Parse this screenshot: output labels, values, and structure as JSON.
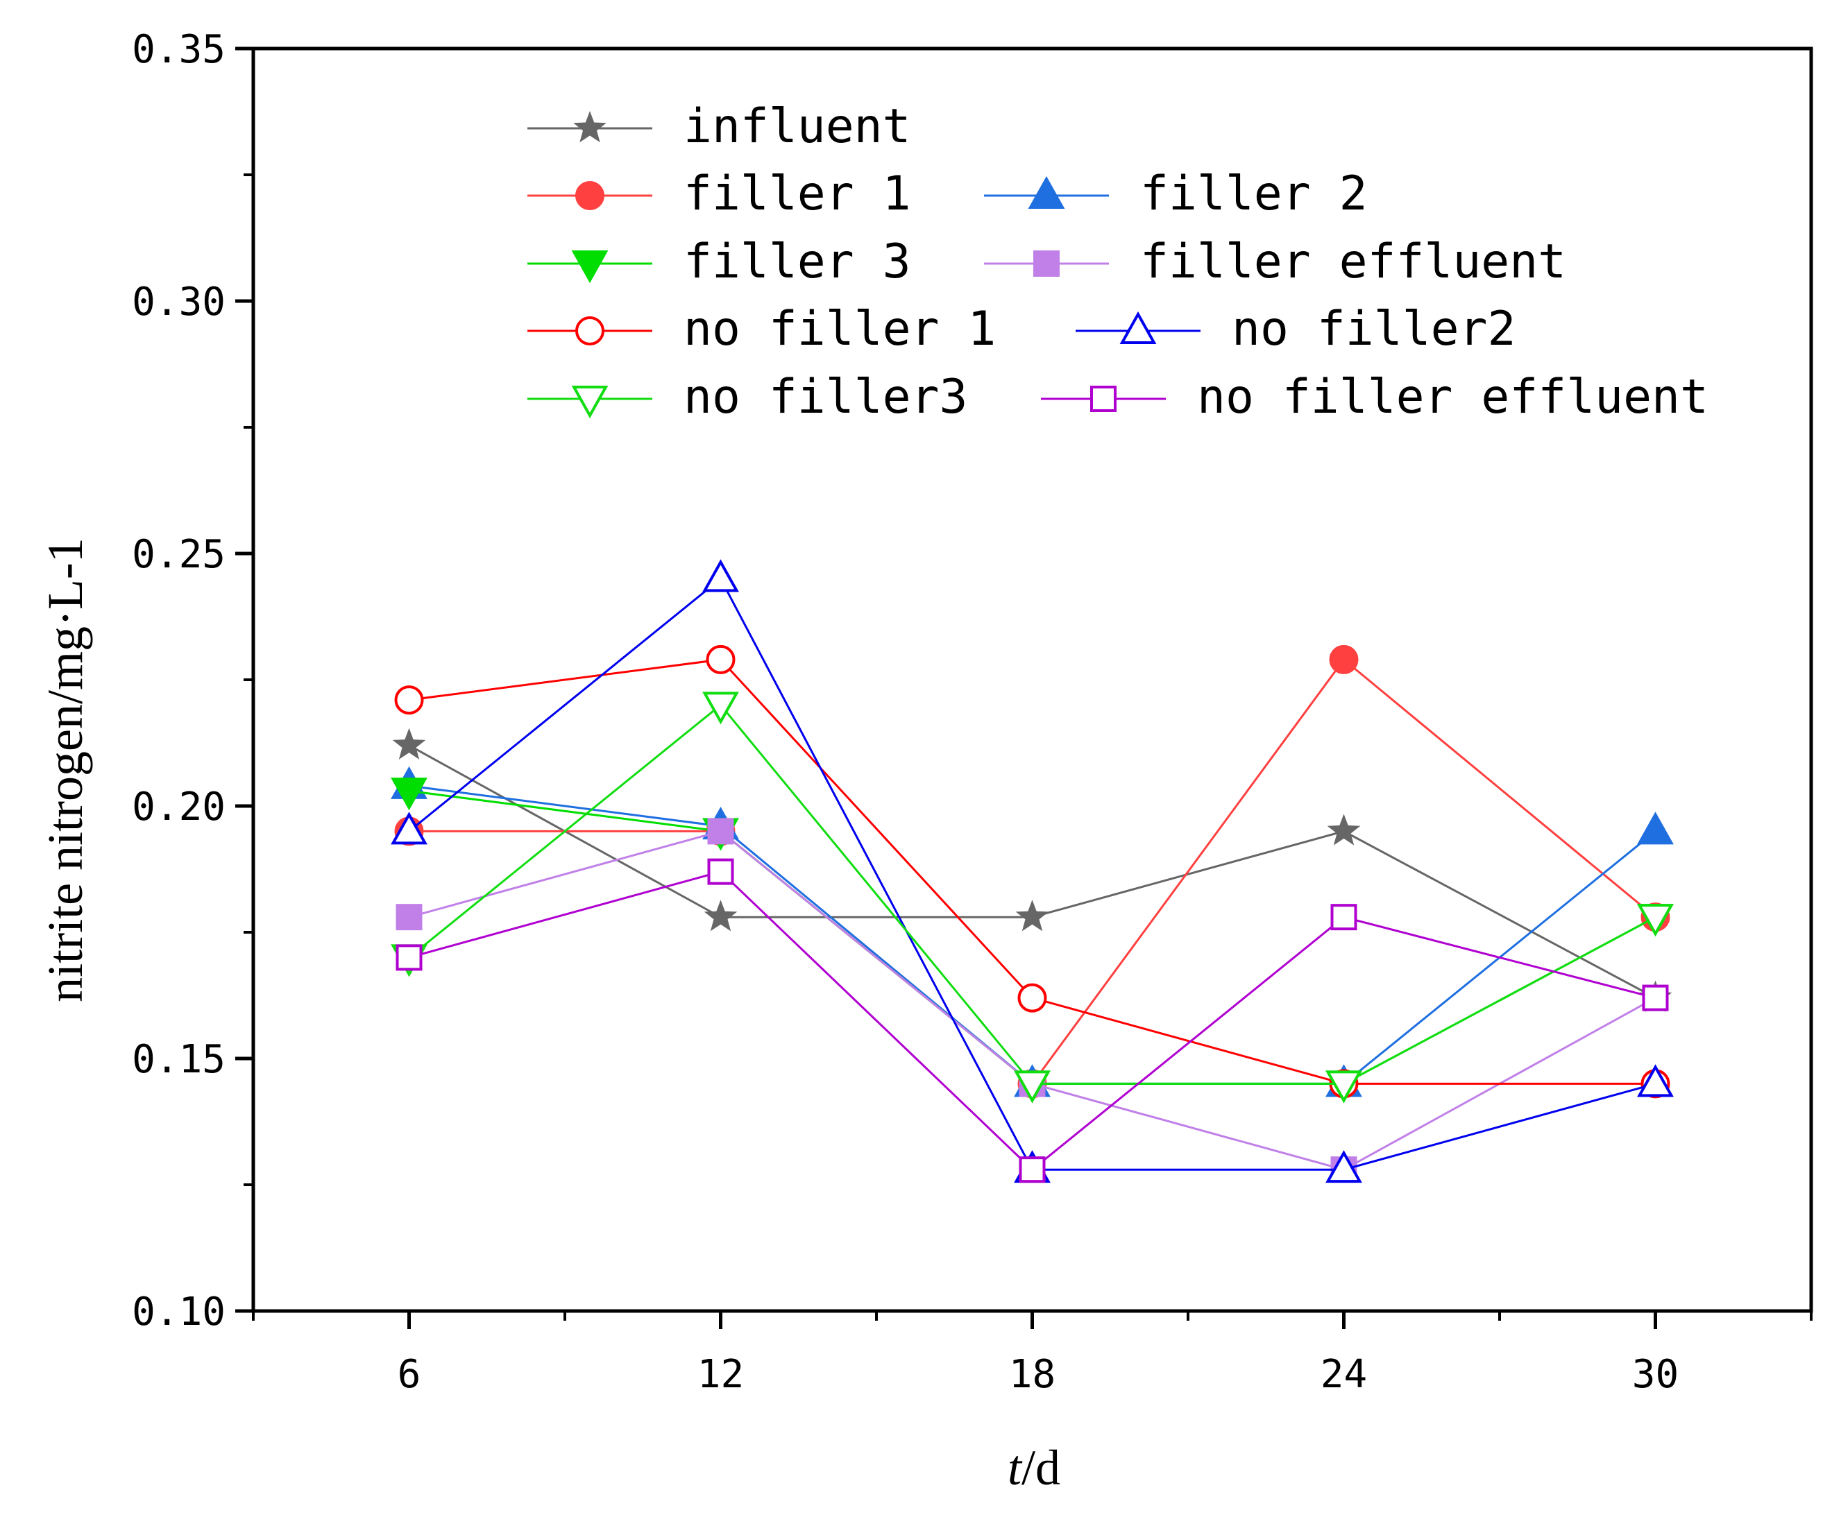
{
  "chart_data": {
    "type": "line",
    "title": "",
    "xlabel_italic": "t",
    "xlabel_rest": "/d",
    "ylabel": "nitrite nitrogen/mg·L-1",
    "x": [
      6,
      12,
      18,
      24,
      30
    ],
    "xlim": [
      3,
      33
    ],
    "ylim": [
      0.1,
      0.35
    ],
    "x_ticks": [
      "6",
      "12",
      "18",
      "24",
      "30"
    ],
    "y_ticks": [
      "0.10",
      "0.15",
      "0.20",
      "0.25",
      "0.30",
      "0.35"
    ],
    "y_tick_values": [
      0.1,
      0.15,
      0.2,
      0.25,
      0.3,
      0.35
    ],
    "legend_position": "top",
    "series": [
      {
        "name": "influent",
        "color": "#666666",
        "marker": "star",
        "filled": true,
        "values": [
          0.212,
          0.178,
          0.178,
          0.195,
          0.162
        ]
      },
      {
        "name": "filler 1",
        "color": "#ff4040",
        "marker": "circle",
        "filled": true,
        "values": [
          0.195,
          0.195,
          0.145,
          0.229,
          0.178
        ]
      },
      {
        "name": "filler 2",
        "color": "#1f6fe0",
        "marker": "triangle-up",
        "filled": true,
        "values": [
          0.204,
          0.196,
          0.145,
          0.145,
          0.195
        ]
      },
      {
        "name": "filler 3",
        "color": "#00dd00",
        "marker": "triangle-down",
        "filled": true,
        "values": [
          0.203,
          0.195,
          0.145,
          0.145,
          0.178
        ]
      },
      {
        "name": "filler effluent",
        "color": "#c080e8",
        "marker": "square",
        "filled": true,
        "values": [
          0.178,
          0.195,
          0.145,
          0.128,
          0.162
        ]
      },
      {
        "name": "no filler 1",
        "color": "#ff0000",
        "marker": "circle",
        "filled": false,
        "values": [
          0.221,
          0.229,
          0.162,
          0.145,
          0.145
        ]
      },
      {
        "name": "no filler2",
        "color": "#0000ee",
        "marker": "triangle-up",
        "filled": false,
        "values": [
          0.195,
          0.245,
          0.128,
          0.128,
          0.145
        ]
      },
      {
        "name": "no filler3",
        "color": "#11dd11",
        "marker": "triangle-down",
        "filled": false,
        "values": [
          0.17,
          0.22,
          0.145,
          0.145,
          0.178
        ]
      },
      {
        "name": "no filler effluent",
        "color": "#b000d0",
        "marker": "square",
        "filled": false,
        "values": [
          0.17,
          0.187,
          0.128,
          0.178,
          0.162
        ]
      }
    ]
  }
}
